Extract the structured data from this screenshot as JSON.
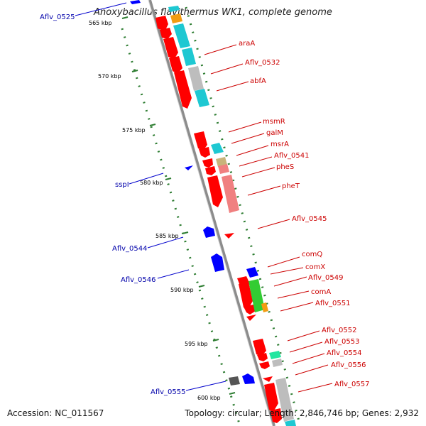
{
  "title": "Anoxybacillus flavithermus WK1, complete genome",
  "footer": {
    "accession": "Accession: NC_011567",
    "summary": "Topology: circular; Length: 2,846,746 bp; Genes: 2,932"
  },
  "colors": {
    "plus_gene": "#ff0000",
    "minus_gene": "#0000ff",
    "plus_label": "#cc0000",
    "minus_label": "#0000aa",
    "backbone": "#8c8c8c",
    "tick": "#2e7d32",
    "cyan_track": "#1ec8d2",
    "grey_track": "#bdbdbd",
    "pink_track": "#f08080",
    "green_track": "#33cc33"
  },
  "ticks": [
    {
      "label": "565 kbp"
    },
    {
      "label": "570 kbp"
    },
    {
      "label": "575 kbp"
    },
    {
      "label": "580 kbp"
    },
    {
      "label": "585 kbp"
    },
    {
      "label": "590 kbp"
    },
    {
      "label": "595 kbp"
    },
    {
      "label": "600 kbp"
    }
  ],
  "plus_labels": [
    {
      "text": "araA"
    },
    {
      "text": "Aflv_0532"
    },
    {
      "text": "abfA"
    },
    {
      "text": "msmR"
    },
    {
      "text": "galM"
    },
    {
      "text": "msrA"
    },
    {
      "text": "Aflv_0541"
    },
    {
      "text": "pheS"
    },
    {
      "text": "pheT"
    },
    {
      "text": "Aflv_0545"
    },
    {
      "text": "comQ"
    },
    {
      "text": "comX"
    },
    {
      "text": "Aflv_0549"
    },
    {
      "text": "comA"
    },
    {
      "text": "Aflv_0551"
    },
    {
      "text": "Aflv_0552"
    },
    {
      "text": "Aflv_0553"
    },
    {
      "text": "Aflv_0554"
    },
    {
      "text": "Aflv_0556"
    },
    {
      "text": "Aflv_0557"
    }
  ],
  "minus_labels": [
    {
      "text": "Aflv_0525"
    },
    {
      "text": "sspI"
    },
    {
      "text": "Aflv_0544"
    },
    {
      "text": "Aflv_0546"
    },
    {
      "text": "Aflv_0555"
    }
  ]
}
